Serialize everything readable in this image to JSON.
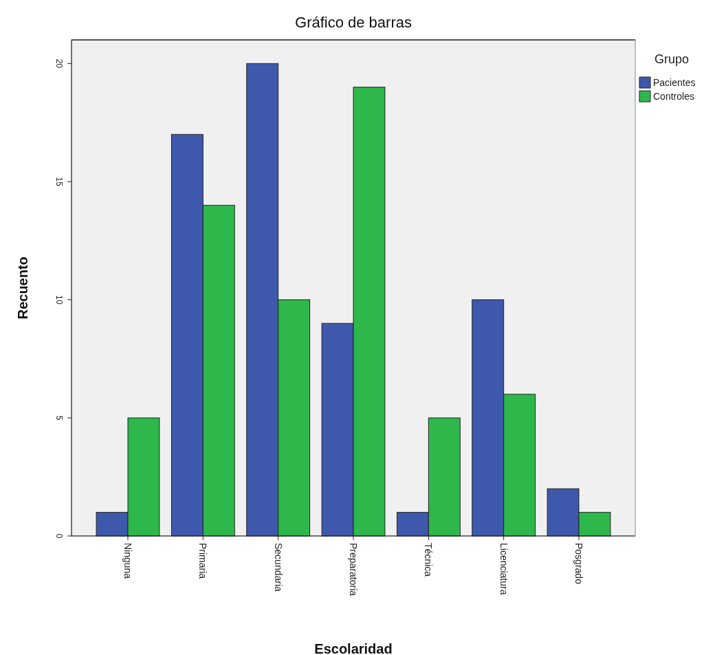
{
  "chart_data": {
    "type": "bar",
    "title": "Gráfico de barras",
    "xlabel": "Escolaridad",
    "ylabel": "Recuento",
    "legend_title": "Grupo",
    "legend": "right",
    "categories": [
      "Ninguna",
      "Primaria",
      "Secundaria",
      "Preparatoria",
      "Técnica",
      "Licenciatura",
      "Posgrado"
    ],
    "series": [
      {
        "name": "Pacientes",
        "color": "#3e58ac",
        "values": [
          1,
          17,
          20,
          9,
          1,
          10,
          2
        ]
      },
      {
        "name": "Controles",
        "color": "#2eb84b",
        "values": [
          5,
          14,
          10,
          19,
          5,
          6,
          1
        ]
      }
    ],
    "ylim": [
      0,
      21
    ],
    "yticks": [
      0,
      5,
      10,
      15,
      20
    ],
    "grid": false
  }
}
